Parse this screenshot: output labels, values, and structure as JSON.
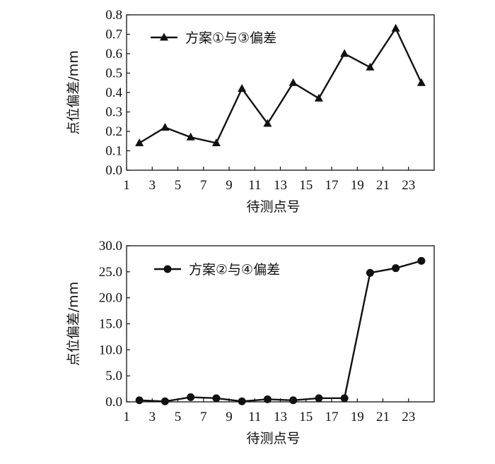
{
  "chart_data": [
    {
      "type": "line",
      "xlabel": "待测点号",
      "ylabel": "点位偏差/mm",
      "ylim": [
        0,
        0.8
      ],
      "yticks": [
        "0.0",
        "0.1",
        "0.2",
        "0.3",
        "0.4",
        "0.5",
        "0.6",
        "0.7",
        "0.8"
      ],
      "xlim": [
        1,
        25
      ],
      "xticks": [
        "1",
        "3",
        "5",
        "7",
        "9",
        "11",
        "13",
        "15",
        "17",
        "19",
        "21",
        "23"
      ],
      "grid": false,
      "legend_position": "top-left",
      "series": [
        {
          "name": "方案①与③偏差",
          "marker": "triangle",
          "color": "#111111",
          "x": [
            2,
            4,
            6,
            8,
            10,
            12,
            14,
            16,
            18,
            20,
            22,
            24
          ],
          "y": [
            0.14,
            0.22,
            0.17,
            0.14,
            0.42,
            0.24,
            0.45,
            0.37,
            0.6,
            0.53,
            0.73,
            0.45
          ]
        }
      ]
    },
    {
      "type": "line",
      "xlabel": "待测点号",
      "ylabel": "点位偏差/mm",
      "ylim": [
        0,
        30
      ],
      "yticks": [
        "0.0",
        "5.0",
        "10.0",
        "15.0",
        "20.0",
        "25.0",
        "30.0"
      ],
      "xlim": [
        1,
        25
      ],
      "xticks": [
        "1",
        "3",
        "5",
        "7",
        "9",
        "11",
        "13",
        "15",
        "17",
        "19",
        "21",
        "23"
      ],
      "grid": false,
      "legend_position": "top-left",
      "series": [
        {
          "name": "方案②与④偏差",
          "marker": "circle",
          "color": "#111111",
          "x": [
            2,
            4,
            6,
            8,
            10,
            12,
            14,
            16,
            18,
            20,
            22,
            24
          ],
          "y": [
            0.3,
            0.1,
            0.9,
            0.7,
            0.1,
            0.5,
            0.3,
            0.7,
            0.7,
            24.8,
            25.7,
            27.1
          ]
        }
      ]
    }
  ]
}
